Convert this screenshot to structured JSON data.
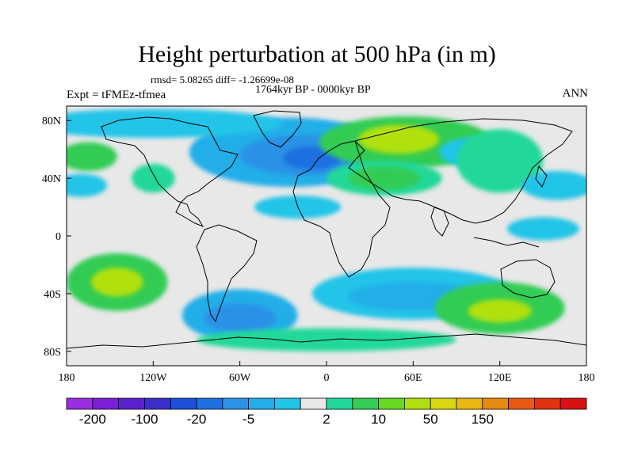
{
  "title": "Height perturbation at 500 hPa (in m)",
  "stats": "rmsd= 5.08265 diff= -1.26699e-08",
  "period": "1764kyr BP - 0000kyr BP",
  "experiment": "Expt = tFMEz-tfmea",
  "season": "ANN",
  "map": {
    "lon_range": [
      -180,
      180
    ],
    "lat_range": [
      -90,
      90
    ],
    "background_color": "#e8e8e8",
    "lon_ticks": [
      {
        "value": -180,
        "label": "180"
      },
      {
        "value": -120,
        "label": "120W"
      },
      {
        "value": -60,
        "label": "60W"
      },
      {
        "value": 0,
        "label": "0"
      },
      {
        "value": 60,
        "label": "60E"
      },
      {
        "value": 120,
        "label": "120E"
      },
      {
        "value": 180,
        "label": "180"
      }
    ],
    "lat_ticks": [
      {
        "value": 80,
        "label": "80N"
      },
      {
        "value": 40,
        "label": "40N"
      },
      {
        "value": 0,
        "label": "0"
      },
      {
        "value": -40,
        "label": "40S"
      },
      {
        "value": -80,
        "label": "80S"
      }
    ]
  },
  "colorbar": {
    "colors": [
      "#9b2ee0",
      "#7a1fd6",
      "#5a22cc",
      "#3a30cc",
      "#1c50d8",
      "#1f70e0",
      "#2b92e6",
      "#22aee8",
      "#22c4e8",
      "#e8e8e8",
      "#22d898",
      "#33cc55",
      "#66d822",
      "#b0e011",
      "#d8d811",
      "#e8b811",
      "#e88a11",
      "#e85a11",
      "#e03311",
      "#d81111"
    ],
    "labels": [
      {
        "boundary": 1,
        "text": "-200"
      },
      {
        "boundary": 3,
        "text": "-100"
      },
      {
        "boundary": 5,
        "text": "-20"
      },
      {
        "boundary": 7,
        "text": "-5"
      },
      {
        "boundary": 10,
        "text": "2"
      },
      {
        "boundary": 12,
        "text": "10"
      },
      {
        "boundary": 14,
        "text": "50"
      },
      {
        "boundary": 16,
        "text": "150"
      }
    ]
  },
  "perturbation_regions": [
    {
      "name": "north-atlantic-negative",
      "lon": -25,
      "lat": 58,
      "rlon": 70,
      "rlat": 24,
      "level": 7
    },
    {
      "name": "north-atlantic-core",
      "lon": -15,
      "lat": 56,
      "rlon": 45,
      "rlat": 14,
      "level": 6
    },
    {
      "name": "north-atlantic-center",
      "lon": -10,
      "lat": 54,
      "rlon": 20,
      "rlat": 8,
      "level": 5
    },
    {
      "name": "eurasia-positive",
      "lon": 55,
      "lat": 65,
      "rlon": 60,
      "rlat": 18,
      "level": 11
    },
    {
      "name": "eurasia-core",
      "lon": 50,
      "lat": 67,
      "rlon": 28,
      "rlat": 10,
      "level": 13
    },
    {
      "name": "middle-east-positive",
      "lon": 40,
      "lat": 40,
      "rlon": 40,
      "rlat": 12,
      "level": 10
    },
    {
      "name": "middle-east-core",
      "lon": 40,
      "lat": 40,
      "rlon": 25,
      "rlat": 8,
      "level": 11
    },
    {
      "name": "siberia-negative",
      "lon": 100,
      "lat": 58,
      "rlon": 22,
      "rlat": 10,
      "level": 8
    },
    {
      "name": "east-asia-positive",
      "lon": 120,
      "lat": 52,
      "rlon": 30,
      "rlat": 22,
      "level": 10
    },
    {
      "name": "north-pacific-positive",
      "lon": -165,
      "lat": 55,
      "rlon": 20,
      "rlat": 10,
      "level": 11
    },
    {
      "name": "north-pacific-negative",
      "lon": 160,
      "lat": 35,
      "rlon": 25,
      "rlat": 10,
      "level": 8
    },
    {
      "name": "west-pacific-negative",
      "lon": -170,
      "lat": 35,
      "rlon": 18,
      "rlat": 8,
      "level": 8
    },
    {
      "name": "north-america-positive",
      "lon": -120,
      "lat": 40,
      "rlon": 15,
      "rlat": 10,
      "level": 10
    },
    {
      "name": "arctic-negative",
      "lon": -120,
      "lat": 78,
      "rlon": 90,
      "rlat": 10,
      "level": 8
    },
    {
      "name": "subtropical-atlantic-negative",
      "lon": -20,
      "lat": 20,
      "rlon": 30,
      "rlat": 8,
      "level": 8
    },
    {
      "name": "southern-ocean-negative",
      "lon": 60,
      "lat": -40,
      "rlon": 70,
      "rlat": 18,
      "level": 8
    },
    {
      "name": "southern-ocean-core",
      "lon": 60,
      "lat": -42,
      "rlon": 45,
      "rlat": 10,
      "level": 7
    },
    {
      "name": "south-america-negative",
      "lon": -60,
      "lat": -55,
      "rlon": 40,
      "rlat": 18,
      "level": 7
    },
    {
      "name": "south-america-core",
      "lon": -60,
      "lat": -57,
      "rlon": 25,
      "rlat": 10,
      "level": 6
    },
    {
      "name": "south-pacific-positive",
      "lon": -145,
      "lat": -32,
      "rlon": 35,
      "rlat": 20,
      "level": 11
    },
    {
      "name": "south-pacific-core",
      "lon": -145,
      "lat": -32,
      "rlon": 18,
      "rlat": 10,
      "level": 13
    },
    {
      "name": "australia-south-positive",
      "lon": 120,
      "lat": -50,
      "rlon": 45,
      "rlat": 18,
      "level": 11
    },
    {
      "name": "australia-south-core",
      "lon": 120,
      "lat": -52,
      "rlon": 22,
      "rlat": 8,
      "level": 13
    },
    {
      "name": "antarctic-positive",
      "lon": 0,
      "lat": -72,
      "rlon": 90,
      "rlat": 8,
      "level": 10
    },
    {
      "name": "equatorial-pacific-negative",
      "lon": 150,
      "lat": 5,
      "rlon": 25,
      "rlat": 8,
      "level": 8
    }
  ]
}
